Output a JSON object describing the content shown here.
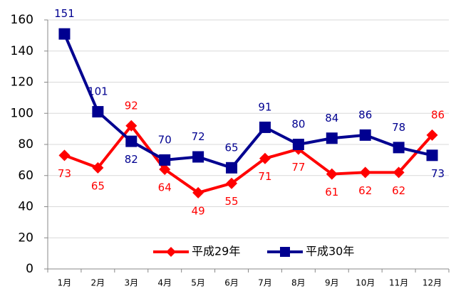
{
  "chart_data": {
    "type": "line",
    "categories": [
      "1月",
      "2月",
      "3月",
      "4月",
      "5月",
      "6月",
      "7月",
      "8月",
      "9月",
      "10月",
      "11月",
      "12月"
    ],
    "series": [
      {
        "name": "平成29年",
        "color": "#ff0000",
        "marker": "diamond",
        "values": [
          73,
          65,
          92,
          64,
          49,
          55,
          71,
          77,
          61,
          62,
          62,
          86
        ]
      },
      {
        "name": "平成30年",
        "color": "#000090",
        "marker": "square",
        "values": [
          151,
          101,
          82,
          70,
          72,
          65,
          91,
          80,
          84,
          86,
          78,
          73
        ]
      }
    ],
    "ylim": [
      0,
      160
    ],
    "yticks": [
      0,
      20,
      40,
      60,
      80,
      100,
      120,
      140,
      160
    ],
    "grid": true,
    "legend": "bottom"
  }
}
